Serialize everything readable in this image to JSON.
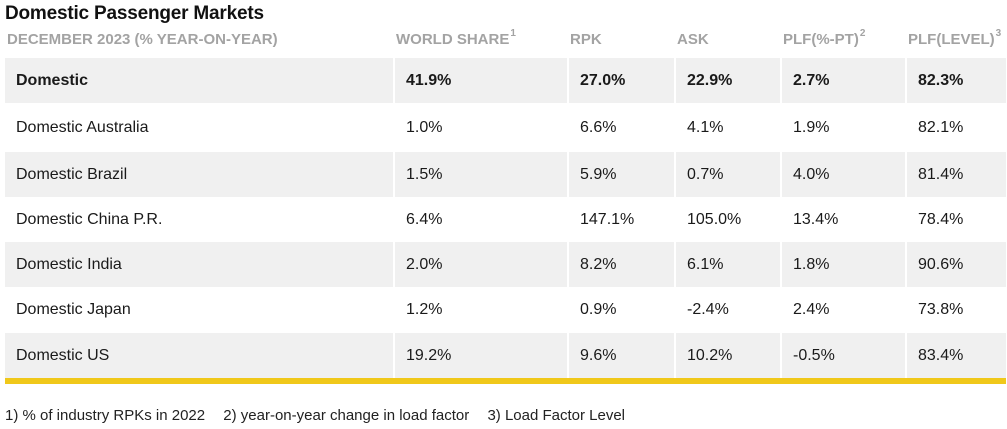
{
  "title": "Domestic Passenger Markets",
  "header": {
    "period": "DECEMBER 2023 (% YEAR-ON-YEAR)",
    "world_share": "WORLD SHARE",
    "world_share_sup": "1",
    "rpk": "RPK",
    "ask": "ASK",
    "plf_pt": "PLF(%-PT)",
    "plf_pt_sup": "2",
    "plf_level": "PLF(LEVEL)",
    "plf_level_sup": "3"
  },
  "rows": [
    {
      "market": "Domestic",
      "world_share": "41.9%",
      "rpk": "27.0%",
      "ask": "22.9%",
      "plf_pt": "2.7%",
      "plf_level": "82.3%"
    },
    {
      "market": "Domestic Australia",
      "world_share": "1.0%",
      "rpk": "6.6%",
      "ask": "4.1%",
      "plf_pt": "1.9%",
      "plf_level": "82.1%"
    },
    {
      "market": "Domestic Brazil",
      "world_share": "1.5%",
      "rpk": "5.9%",
      "ask": "0.7%",
      "plf_pt": "4.0%",
      "plf_level": "81.4%"
    },
    {
      "market": "Domestic China P.R.",
      "world_share": "6.4%",
      "rpk": "147.1%",
      "ask": "105.0%",
      "plf_pt": "13.4%",
      "plf_level": "78.4%"
    },
    {
      "market": "Domestic India",
      "world_share": "2.0%",
      "rpk": "8.2%",
      "ask": "6.1%",
      "plf_pt": "1.8%",
      "plf_level": "90.6%"
    },
    {
      "market": "Domestic Japan",
      "world_share": "1.2%",
      "rpk": "0.9%",
      "ask": "-2.4%",
      "plf_pt": "2.4%",
      "plf_level": "73.8%"
    },
    {
      "market": "Domestic US",
      "world_share": "19.2%",
      "rpk": "9.6%",
      "ask": "10.2%",
      "plf_pt": "-0.5%",
      "plf_level": "83.4%"
    }
  ],
  "footnotes": [
    "1) % of industry RPKs in 2022",
    "2) year-on-year change in load factor",
    "3) Load Factor Level"
  ],
  "colors": {
    "accent_rule": "#f0c81a",
    "row_shade": "#f0f0f0",
    "header_text": "#a3a3a3"
  }
}
